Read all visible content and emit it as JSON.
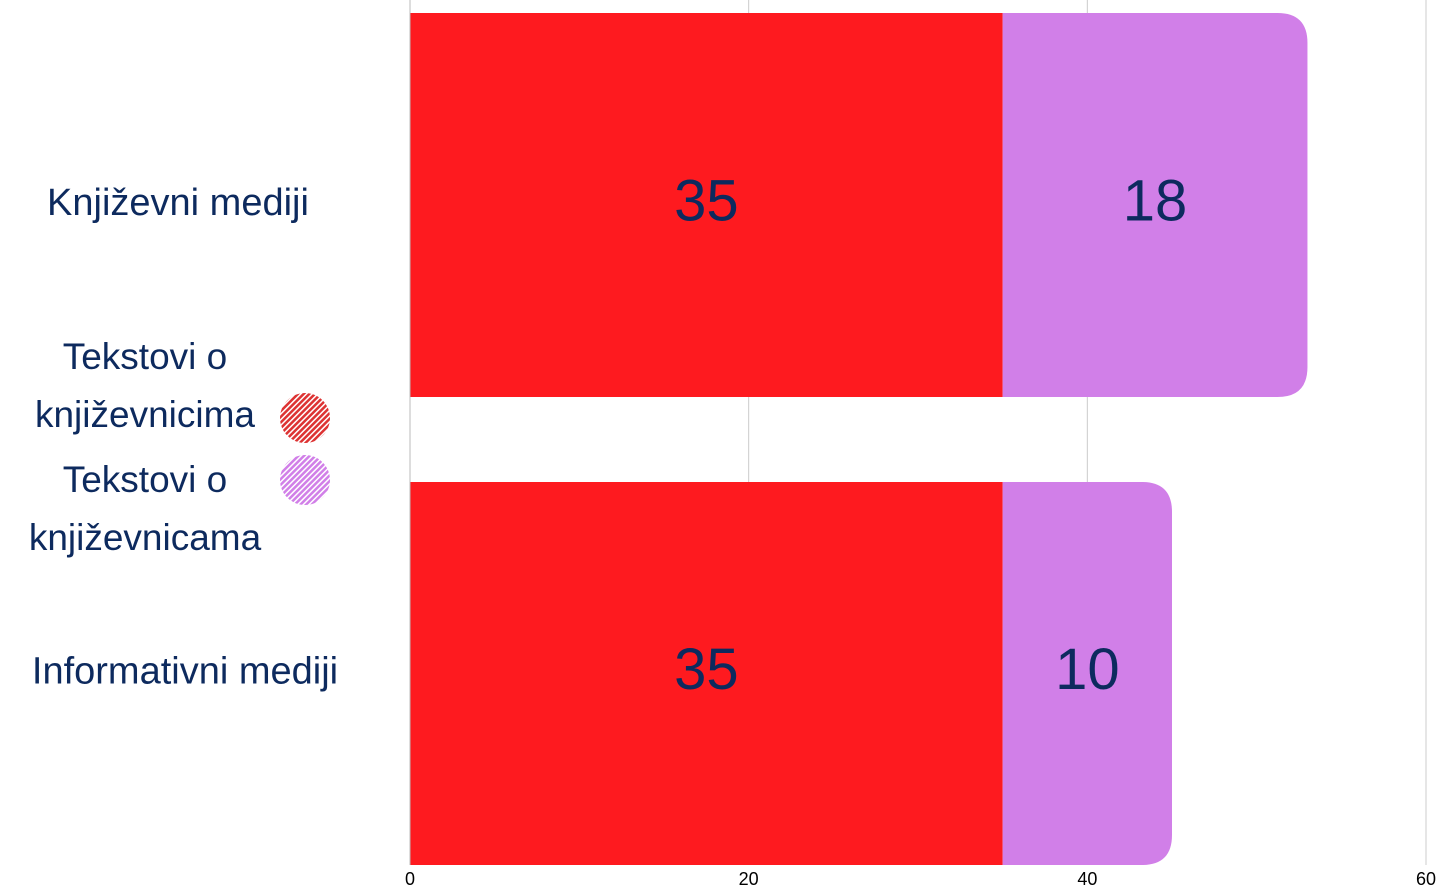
{
  "chart_data": {
    "type": "stacked-barh",
    "categories": [
      "Književni mediji",
      "Informativni mediji"
    ],
    "series": [
      {
        "name": "Tekstovi o književnicima",
        "color": "#fe1a1f",
        "values": [
          35,
          35
        ]
      },
      {
        "name": "Tekstovi o književnicama",
        "color": "#d17fe8",
        "values": [
          18,
          10
        ]
      }
    ],
    "xlim": [
      0,
      60
    ],
    "xticks": [
      0,
      20,
      40,
      60
    ],
    "grid": true
  }
}
